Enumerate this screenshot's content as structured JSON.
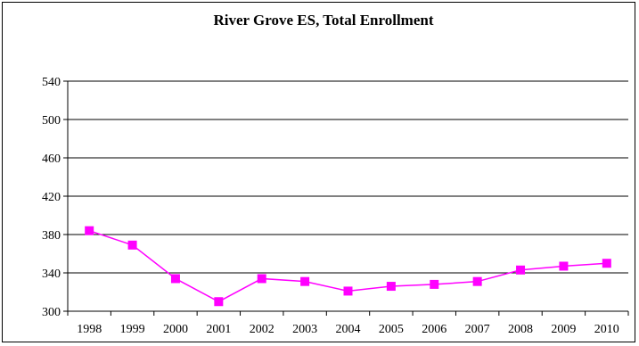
{
  "chart_data": {
    "type": "line",
    "title": "River Grove ES, Total Enrollment",
    "xlabel": "",
    "ylabel": "",
    "categories": [
      "1998",
      "1999",
      "2000",
      "2001",
      "2002",
      "2003",
      "2004",
      "2005",
      "2006",
      "2007",
      "2008",
      "2009",
      "2010"
    ],
    "series": [
      {
        "values": [
          384,
          369,
          334,
          310,
          334,
          331,
          321,
          326,
          328,
          331,
          343,
          347,
          350
        ]
      }
    ],
    "ylim": [
      300,
      540
    ],
    "yticks": [
      300,
      340,
      380,
      420,
      460,
      500,
      540
    ],
    "grid": "horizontal",
    "legend": "none",
    "colors": {
      "series": "#ff00ff",
      "grid": "#000000",
      "background": "#ffffff"
    }
  }
}
